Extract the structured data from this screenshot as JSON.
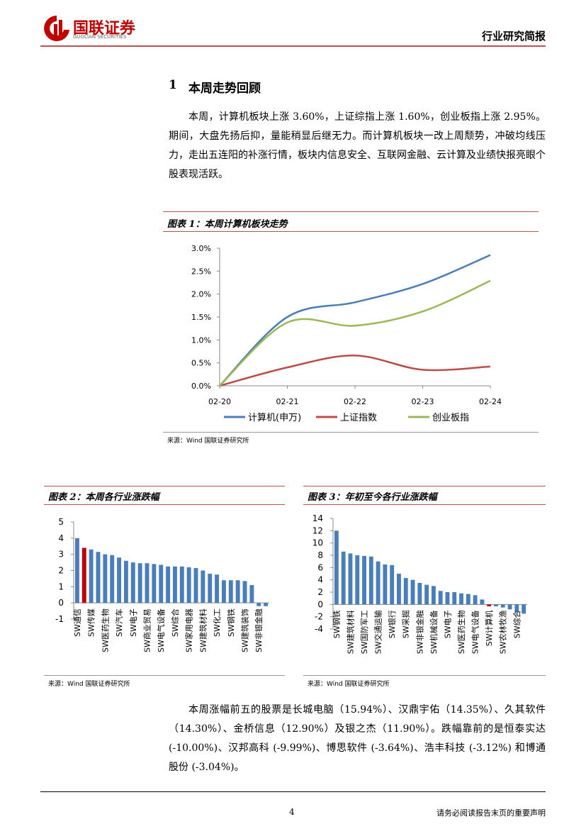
{
  "header": {
    "logo": "国联证券",
    "logo_en": "GUOLIAN SECURITIES",
    "report_type": "行业研究简报"
  },
  "section": {
    "number": "1",
    "title": "本周走势回顾"
  },
  "paragraphs": [
    "本周，计算机板块上涨 3.60%，上证综指上涨 1.60%，创业板指上涨 2.95%。期间，大盘先扬后抑，量能稍显后继无力。而计算机板块一改上周颓势，冲破均线压力，走出五连阳的补涨行情，板块内信息安全、互联网金融、云计算及业绩快报亮眼个股表现活跃。",
    "本周涨幅前五的股票是长城电脑（15.94%）、汉鼎宇佑（14.35%）、久其软件（14.30%）、金桥信息（12.90%）及银之杰（11.90%）。跌幅靠前的是恒泰实达(-10.00%)、汉邦高科 (-9.99%)、博思软件 (-3.64%)、浩丰科技 (-3.12%) 和博通股份 (-3.04%)。"
  ],
  "chart_data": [
    {
      "type": "line",
      "title": "图表 1：本周计算机板块走势",
      "source": "来源：Wind 国联证券研究所",
      "categories": [
        "02-20",
        "02-21",
        "02-22",
        "02-23",
        "02-24"
      ],
      "series": [
        {
          "name": "计算机(申万)",
          "color": "#4a7ebb",
          "values": [
            0,
            1.5,
            1.82,
            2.22,
            2.85
          ]
        },
        {
          "name": "上证指数",
          "color": "#be4b48",
          "values": [
            0,
            0.4,
            0.66,
            0.35,
            0.42
          ]
        },
        {
          "name": "创业板指",
          "color": "#98b954",
          "values": [
            0,
            1.38,
            1.31,
            1.62,
            2.29
          ]
        }
      ],
      "ylim": [
        0,
        3
      ],
      "yticks": [
        {
          "value": 0,
          "label": "0.0%"
        },
        {
          "value": 0.5,
          "label": "0.5%"
        },
        {
          "value": 1,
          "label": "1.0%"
        },
        {
          "value": 1.5,
          "label": "1.5%"
        },
        {
          "value": 2,
          "label": "2.0%"
        },
        {
          "value": 2.5,
          "label": "2.5%"
        },
        {
          "value": 3,
          "label": "3.0%"
        }
      ],
      "legend": "bottom"
    },
    {
      "type": "bar",
      "title": "图表 2：本周各行业涨跌幅",
      "source": "来源：Wind 国联证券研究所",
      "categories": [
        "SW通信",
        null,
        "SW传媒",
        null,
        "SW医药生物",
        null,
        "SW汽车",
        null,
        "SW电子",
        null,
        "SW商业贸易",
        null,
        "SW电气设备",
        null,
        "SW综合",
        null,
        "SW家用电器",
        null,
        "SW建筑材料",
        null,
        "SW化工",
        null,
        "SW钢铁",
        null,
        "SW建筑装饰",
        null,
        "SW非银金融",
        null
      ],
      "values": [
        4.0,
        3.4,
        3.3,
        3.15,
        3.0,
        2.95,
        2.8,
        2.6,
        2.5,
        2.45,
        2.45,
        2.4,
        2.35,
        2.25,
        2.25,
        2.25,
        2.2,
        2.15,
        2.0,
        1.8,
        1.75,
        1.4,
        1.4,
        1.4,
        1.35,
        1.1,
        -0.2,
        -0.2
      ],
      "colors": [
        "#4a7ebb",
        "#c00000",
        "#4a7ebb",
        "#4a7ebb",
        "#4a7ebb",
        "#4a7ebb",
        "#4a7ebb",
        "#4a7ebb",
        "#4a7ebb",
        "#4a7ebb",
        "#4a7ebb",
        "#4a7ebb",
        "#4a7ebb",
        "#4a7ebb",
        "#4a7ebb",
        "#4a7ebb",
        "#4a7ebb",
        "#4a7ebb",
        "#4a7ebb",
        "#4a7ebb",
        "#4a7ebb",
        "#4a7ebb",
        "#4a7ebb",
        "#4a7ebb",
        "#4a7ebb",
        "#4a7ebb",
        "#4a7ebb",
        "#4a7ebb"
      ],
      "ylim": [
        -1,
        5
      ],
      "yticks": [
        -1,
        0,
        1,
        2,
        3,
        4,
        5
      ]
    },
    {
      "type": "bar",
      "title": "图表 3：年初至今各行业涨跌幅",
      "source": "来源：Wind 国联证券研究所",
      "categories": [
        "SW钢铁",
        null,
        "SW建筑材料",
        null,
        "SW国防军工",
        null,
        "SW交通运输",
        null,
        "SW银行",
        null,
        "SW采掘",
        null,
        "SW非银金融",
        null,
        "SW机械设备",
        null,
        "SW电子",
        null,
        "SW医药生物",
        null,
        "SW电气设备",
        null,
        "SW计算机",
        null,
        "SW农林牧渔",
        null,
        "SW综合",
        null
      ],
      "values": [
        12,
        8.6,
        8.3,
        8.0,
        7.9,
        7.8,
        7.0,
        6.5,
        6.4,
        5.0,
        4.3,
        4.0,
        3.5,
        3.2,
        3.0,
        2.2,
        2.0,
        2.0,
        1.8,
        1.7,
        1.5,
        0.8,
        -0.3,
        -0.3,
        -0.5,
        -0.8,
        -1.2,
        -1.5
      ],
      "colors": [
        "#4a7ebb",
        "#4a7ebb",
        "#4a7ebb",
        "#4a7ebb",
        "#4a7ebb",
        "#4a7ebb",
        "#4a7ebb",
        "#4a7ebb",
        "#4a7ebb",
        "#4a7ebb",
        "#4a7ebb",
        "#4a7ebb",
        "#4a7ebb",
        "#4a7ebb",
        "#4a7ebb",
        "#4a7ebb",
        "#4a7ebb",
        "#4a7ebb",
        "#4a7ebb",
        "#4a7ebb",
        "#4a7ebb",
        "#4a7ebb",
        "#c00000",
        "#4a7ebb",
        "#4a7ebb",
        "#4a7ebb",
        "#4a7ebb",
        "#4a7ebb"
      ],
      "ylim": [
        -4,
        14
      ],
      "yticks": [
        -4,
        -2,
        0,
        2,
        4,
        6,
        8,
        10,
        12,
        14
      ]
    }
  ],
  "footer": {
    "page": "4",
    "disclaimer": "请务必阅读报告末页的重要声明"
  }
}
